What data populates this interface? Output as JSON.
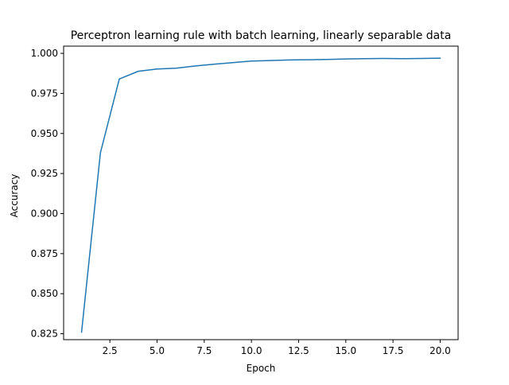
{
  "chart_data": {
    "type": "line",
    "title": "Perceptron learning rule with batch learning, linearly separable data",
    "xlabel": "Epoch",
    "ylabel": "Accuracy",
    "xlim": [
      0.05,
      20.95
    ],
    "ylim": [
      0.8213,
      1.0045
    ],
    "x_ticks": [
      2.5,
      5.0,
      7.5,
      10.0,
      12.5,
      15.0,
      17.5,
      20.0
    ],
    "x_tick_labels": [
      "2.5",
      "5.0",
      "7.5",
      "10.0",
      "12.5",
      "15.0",
      "17.5",
      "20.0"
    ],
    "y_ticks": [
      0.825,
      0.85,
      0.875,
      0.9,
      0.925,
      0.95,
      0.975,
      1.0
    ],
    "y_tick_labels": [
      "0.825",
      "0.850",
      "0.875",
      "0.900",
      "0.925",
      "0.950",
      "0.975",
      "1.000"
    ],
    "grid": false,
    "series": [
      {
        "color": "#1f77b4",
        "x": [
          1,
          2,
          3,
          4,
          5,
          6,
          7,
          8,
          9,
          10,
          11,
          12,
          13,
          14,
          15,
          16,
          17,
          18,
          19,
          20
        ],
        "y": [
          0.826,
          0.938,
          0.984,
          0.9888,
          0.9902,
          0.9907,
          0.9921,
          0.9932,
          0.9942,
          0.9952,
          0.9955,
          0.9959,
          0.996,
          0.9962,
          0.9965,
          0.9967,
          0.9968,
          0.9967,
          0.9968,
          0.997
        ]
      }
    ]
  }
}
